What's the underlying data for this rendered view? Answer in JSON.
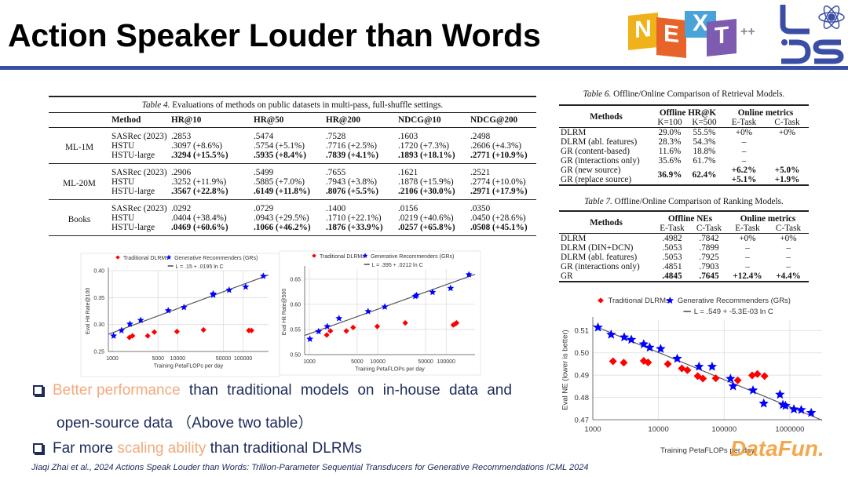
{
  "title": "Action Speaker Louder than Words",
  "logos": {
    "next": [
      "N",
      "E",
      "X",
      "T"
    ],
    "next_suffix": "++",
    "lds": "LDS"
  },
  "table4": {
    "caption_label": "Table 4.",
    "caption": "Evaluations of methods on public datasets in multi-pass, full-shuffle settings.",
    "headers": [
      "",
      "Method",
      "HR@10",
      "HR@50",
      "HR@200",
      "NDCG@10",
      "NDCG@200"
    ],
    "groups": [
      {
        "dataset": "ML-1M",
        "rows": [
          {
            "method": "SASRec (2023)",
            "values": [
              ".2853",
              ".5474",
              ".7528",
              ".1603",
              ".2498"
            ]
          },
          {
            "method": "HSTU",
            "values": [
              ".3097 (+8.6%)",
              ".5754 (+5.1%)",
              ".7716 (+2.5%)",
              ".1720 (+7.3%)",
              ".2606 (+4.3%)"
            ]
          },
          {
            "method": "HSTU-large",
            "bold": true,
            "values": [
              ".3294 (+15.5%)",
              ".5935 (+8.4%)",
              ".7839 (+4.1%)",
              ".1893 (+18.1%)",
              ".2771 (+10.9%)"
            ]
          }
        ]
      },
      {
        "dataset": "ML-20M",
        "rows": [
          {
            "method": "SASRec (2023)",
            "values": [
              ".2906",
              ".5499",
              ".7655",
              ".1621",
              ".2521"
            ]
          },
          {
            "method": "HSTU",
            "values": [
              ".3252 (+11.9%)",
              ".5885 (+7.0%)",
              ".7943 (+3.8%)",
              ".1878 (+15.9%)",
              ".2774 (+10.0%)"
            ]
          },
          {
            "method": "HSTU-large",
            "bold": true,
            "values": [
              ".3567 (+22.8%)",
              ".6149 (+11.8%)",
              ".8076 (+5.5%)",
              ".2106 (+30.0%)",
              ".2971 (+17.9%)"
            ]
          }
        ]
      },
      {
        "dataset": "Books",
        "rows": [
          {
            "method": "SASRec (2023)",
            "values": [
              ".0292",
              ".0729",
              ".1400",
              ".0156",
              ".0350"
            ]
          },
          {
            "method": "HSTU",
            "values": [
              ".0404 (+38.4%)",
              ".0943 (+29.5%)",
              ".1710 (+22.1%)",
              ".0219 (+40.6%)",
              ".0450 (+28.6%)"
            ]
          },
          {
            "method": "HSTU-large",
            "bold": true,
            "values": [
              ".0469 (+60.6%)",
              ".1066 (+46.2%)",
              ".1876 (+33.9%)",
              ".0257 (+65.8%)",
              ".0508 (+45.1%)"
            ]
          }
        ]
      }
    ]
  },
  "table6": {
    "caption_label": "Table 6.",
    "caption": "Offline/Online Comparison of Retrieval Models.",
    "methods_header": "Methods",
    "group_headers": [
      "Offline HR@K",
      "Online metrics"
    ],
    "sub_headers": [
      "K=100",
      "K=500",
      "E-Task",
      "C-Task"
    ],
    "rows": [
      {
        "method": "DLRM",
        "values": [
          "29.0%",
          "55.5%",
          "+0%",
          "+0%"
        ]
      },
      {
        "method": "DLRM (abl. features)",
        "values": [
          "28.3%",
          "54.3%",
          "–",
          ""
        ]
      },
      {
        "method": "GR (content-based)",
        "values": [
          "11.6%",
          "18.8%",
          "–",
          ""
        ]
      },
      {
        "method": "GR (interactions only)",
        "values": [
          "35.6%",
          "61.7%",
          "–",
          ""
        ]
      },
      {
        "method": "GR (new source)",
        "values": [
          "36.9%",
          "62.4%",
          "+6.2%",
          "+5.0%"
        ],
        "bold": true,
        "merged_offline": true
      },
      {
        "method": "GR (replace source)",
        "values": [
          "",
          "",
          "+5.1%",
          "+1.9%"
        ],
        "bold": true
      }
    ]
  },
  "table7": {
    "caption_label": "Table 7.",
    "caption": "Offline/Online Comparison of Ranking Models.",
    "methods_header": "Methods",
    "group_headers": [
      "Offline NEs",
      "Online metrics"
    ],
    "sub_headers": [
      "E-Task",
      "C-Task",
      "E-Task",
      "C-Task"
    ],
    "rows": [
      {
        "method": "DLRM",
        "values": [
          ".4982",
          ".7842",
          "+0%",
          "+0%"
        ]
      },
      {
        "method": "DLRM (DIN+DCN)",
        "values": [
          ".5053",
          ".7899",
          "–",
          "–"
        ]
      },
      {
        "method": "DLRM (abl. features)",
        "values": [
          ".5053",
          ".7925",
          "–",
          "–"
        ]
      },
      {
        "method": "GR (interactions only)",
        "values": [
          ".4851",
          ".7903",
          "–",
          "–"
        ]
      },
      {
        "method": "GR",
        "values": [
          ".4845",
          ".7645",
          "+12.4%",
          "+4.4%"
        ],
        "bold": true
      }
    ]
  },
  "chart_data": [
    {
      "type": "scatter",
      "xlabel": "Training PetaFLOPs per day",
      "ylabel": "Eval Hit Rate@100",
      "x_scale": "log",
      "xlim": [
        870,
        245000
      ],
      "ylim": [
        0.25,
        0.4
      ],
      "xticks": [
        1000,
        5000,
        10000,
        50000,
        100000
      ],
      "xtick_labels": [
        "1000",
        "5000",
        "10000",
        "50000",
        "100000"
      ],
      "yticks": [
        0.25,
        0.3,
        0.35,
        0.4
      ],
      "ytick_labels": [
        "0.25",
        "0.30",
        "0.35",
        "0.40"
      ],
      "grid": true,
      "legend": "top",
      "legend_labels": [
        "Traditional DLRMs",
        "Generative Recommenders (GRs)"
      ],
      "fit_label": "L = .15 + .0195 ln C",
      "fit": {
        "a": 0.15,
        "b": 0.0195
      },
      "series": [
        {
          "name": "Traditional DLRMs",
          "marker": "diamond",
          "color": "#ff0000",
          "points": [
            [
              1824,
              0.276
            ],
            [
              2036,
              0.279
            ],
            [
              3480,
              0.279
            ],
            [
              4390,
              0.286
            ],
            [
              9730,
              0.287
            ],
            [
              24780,
              0.29
            ],
            [
              122400,
              0.289
            ],
            [
              134300,
              0.289
            ]
          ]
        },
        {
          "name": "Generative Recommenders (GRs)",
          "marker": "star",
          "color": "#0000ff",
          "points": [
            [
              1047,
              0.279
            ],
            [
              1382,
              0.289
            ],
            [
              1857,
              0.301
            ],
            [
              2716,
              0.308
            ],
            [
              7160,
              0.326
            ],
            [
              12470,
              0.332
            ],
            [
              34800,
              0.357
            ],
            [
              35000,
              0.355
            ],
            [
              61200,
              0.364
            ],
            [
              109600,
              0.37
            ],
            [
              203700,
              0.39
            ]
          ]
        }
      ]
    },
    {
      "type": "scatter",
      "xlabel": "Training PetaFLOPs per day",
      "ylabel": "Eval Hit Rate@500",
      "x_scale": "log",
      "xlim": [
        853,
        264000
      ],
      "ylim": [
        0.5,
        0.67
      ],
      "xticks": [
        1000,
        5000,
        10000,
        50000,
        100000
      ],
      "xtick_labels": [
        "1000",
        "5000",
        "10000",
        "50000",
        "100000"
      ],
      "yticks": [
        0.5,
        0.55,
        0.6,
        0.65
      ],
      "ytick_labels": [
        "0.50",
        "0.55",
        "0.60",
        "0.65"
      ],
      "grid": true,
      "legend": "top",
      "legend_labels": [
        "Traditional DLRMs",
        "Generative Recommenders (GRs)"
      ],
      "fit_label": "L = .395 + .0212 ln C",
      "fit": {
        "a": 0.395,
        "b": 0.0212
      },
      "series": [
        {
          "name": "Traditional DLRMs",
          "marker": "diamond",
          "color": "#ff0000",
          "points": [
            [
              1792,
              0.539
            ],
            [
              2028,
              0.547
            ],
            [
              3470,
              0.547
            ],
            [
              4360,
              0.554
            ],
            [
              9820,
              0.556
            ],
            [
              25200,
              0.563
            ],
            [
              126800,
              0.559
            ],
            [
              135000,
              0.561
            ],
            [
              142000,
              0.563
            ]
          ]
        },
        {
          "name": "Generative Recommenders (GRs)",
          "marker": "star",
          "color": "#0000ff",
          "points": [
            [
              1018,
              0.531
            ],
            [
              1362,
              0.546
            ],
            [
              1823,
              0.556
            ],
            [
              2712,
              0.572
            ],
            [
              7210,
              0.586
            ],
            [
              12670,
              0.595
            ],
            [
              35300,
              0.616
            ],
            [
              37000,
              0.618
            ],
            [
              63200,
              0.624
            ],
            [
              116000,
              0.632
            ],
            [
              215000,
              0.659
            ]
          ]
        }
      ]
    },
    {
      "type": "scatter",
      "xlabel": "Training PetaFLOPs per day",
      "ylabel": "Eval NE (lower is better)",
      "x_scale": "log",
      "xlim": [
        1000,
        3100000
      ],
      "ylim": [
        0.47,
        0.5147
      ],
      "xticks": [
        1000,
        10000,
        100000,
        1000000
      ],
      "xtick_labels": [
        "1000",
        "10000",
        "100000",
        "1000000"
      ],
      "yticks": [
        0.47,
        0.48,
        0.49,
        0.5,
        0.51
      ],
      "ytick_labels": [
        "0.47",
        "0.48",
        "0.49",
        "0.50",
        "0.51"
      ],
      "grid": true,
      "legend": "top",
      "legend_labels": [
        "Traditional DLRMs",
        "Generative Recommenders (GRs)"
      ],
      "fit_label": "L = .549 + -5.3E-03 ln C",
      "fit": {
        "a": 0.549,
        "b": -0.0053
      },
      "series": [
        {
          "name": "Traditional DLRMs",
          "marker": "diamond",
          "color": "#ff0000",
          "points": [
            [
              2030,
              0.4962
            ],
            [
              2960,
              0.4956
            ],
            [
              5960,
              0.4964
            ],
            [
              6950,
              0.4957
            ],
            [
              13900,
              0.495
            ],
            [
              22700,
              0.493
            ],
            [
              27600,
              0.4922
            ],
            [
              39500,
              0.4896
            ],
            [
              47500,
              0.4885
            ],
            [
              74500,
              0.4886
            ],
            [
              161000,
              0.4877
            ],
            [
              267000,
              0.4899
            ],
            [
              321000,
              0.4905
            ],
            [
              412000,
              0.4896
            ]
          ]
        },
        {
          "name": "Generative Recommenders (GRs)",
          "marker": "star",
          "color": "#0000ff",
          "points": [
            [
              1200,
              0.5114
            ],
            [
              1900,
              0.5082
            ],
            [
              3010,
              0.507
            ],
            [
              3860,
              0.5059
            ],
            [
              5960,
              0.5039
            ],
            [
              7350,
              0.5024
            ],
            [
              10800,
              0.5018
            ],
            [
              19300,
              0.4974
            ],
            [
              41400,
              0.4938
            ],
            [
              65500,
              0.4938
            ],
            [
              124700,
              0.4884
            ],
            [
              136800,
              0.485
            ],
            [
              275000,
              0.4832
            ],
            [
              401000,
              0.4773
            ],
            [
              708000,
              0.4813
            ],
            [
              784000,
              0.4767
            ],
            [
              859000,
              0.4763
            ],
            [
              1153000,
              0.4747
            ],
            [
              1493000,
              0.4744
            ],
            [
              2115000,
              0.4731
            ]
          ]
        }
      ]
    }
  ],
  "bullets": [
    {
      "highlight": "Better performance",
      "text": " than traditional models on in-house data and",
      "cont": "open-source data （Above two table）"
    },
    {
      "pre": "Far more ",
      "highlight": "scaling ability",
      "text": " than traditional DLRMs"
    }
  ],
  "citation": "Jiaqi Zhai et al., 2024 Actions Speak Louder than Words: Trillion-Parameter Sequential Transducers for Generative Recommendations  ICML 2024",
  "watermark": "DataFun.",
  "colors": {
    "accent_blue": "#3b4ea6",
    "highlight_orange": "#f3a97c",
    "text_navy": "#1d2a5a",
    "dlrm_red": "#ff0000",
    "gr_blue": "#0000ff"
  }
}
